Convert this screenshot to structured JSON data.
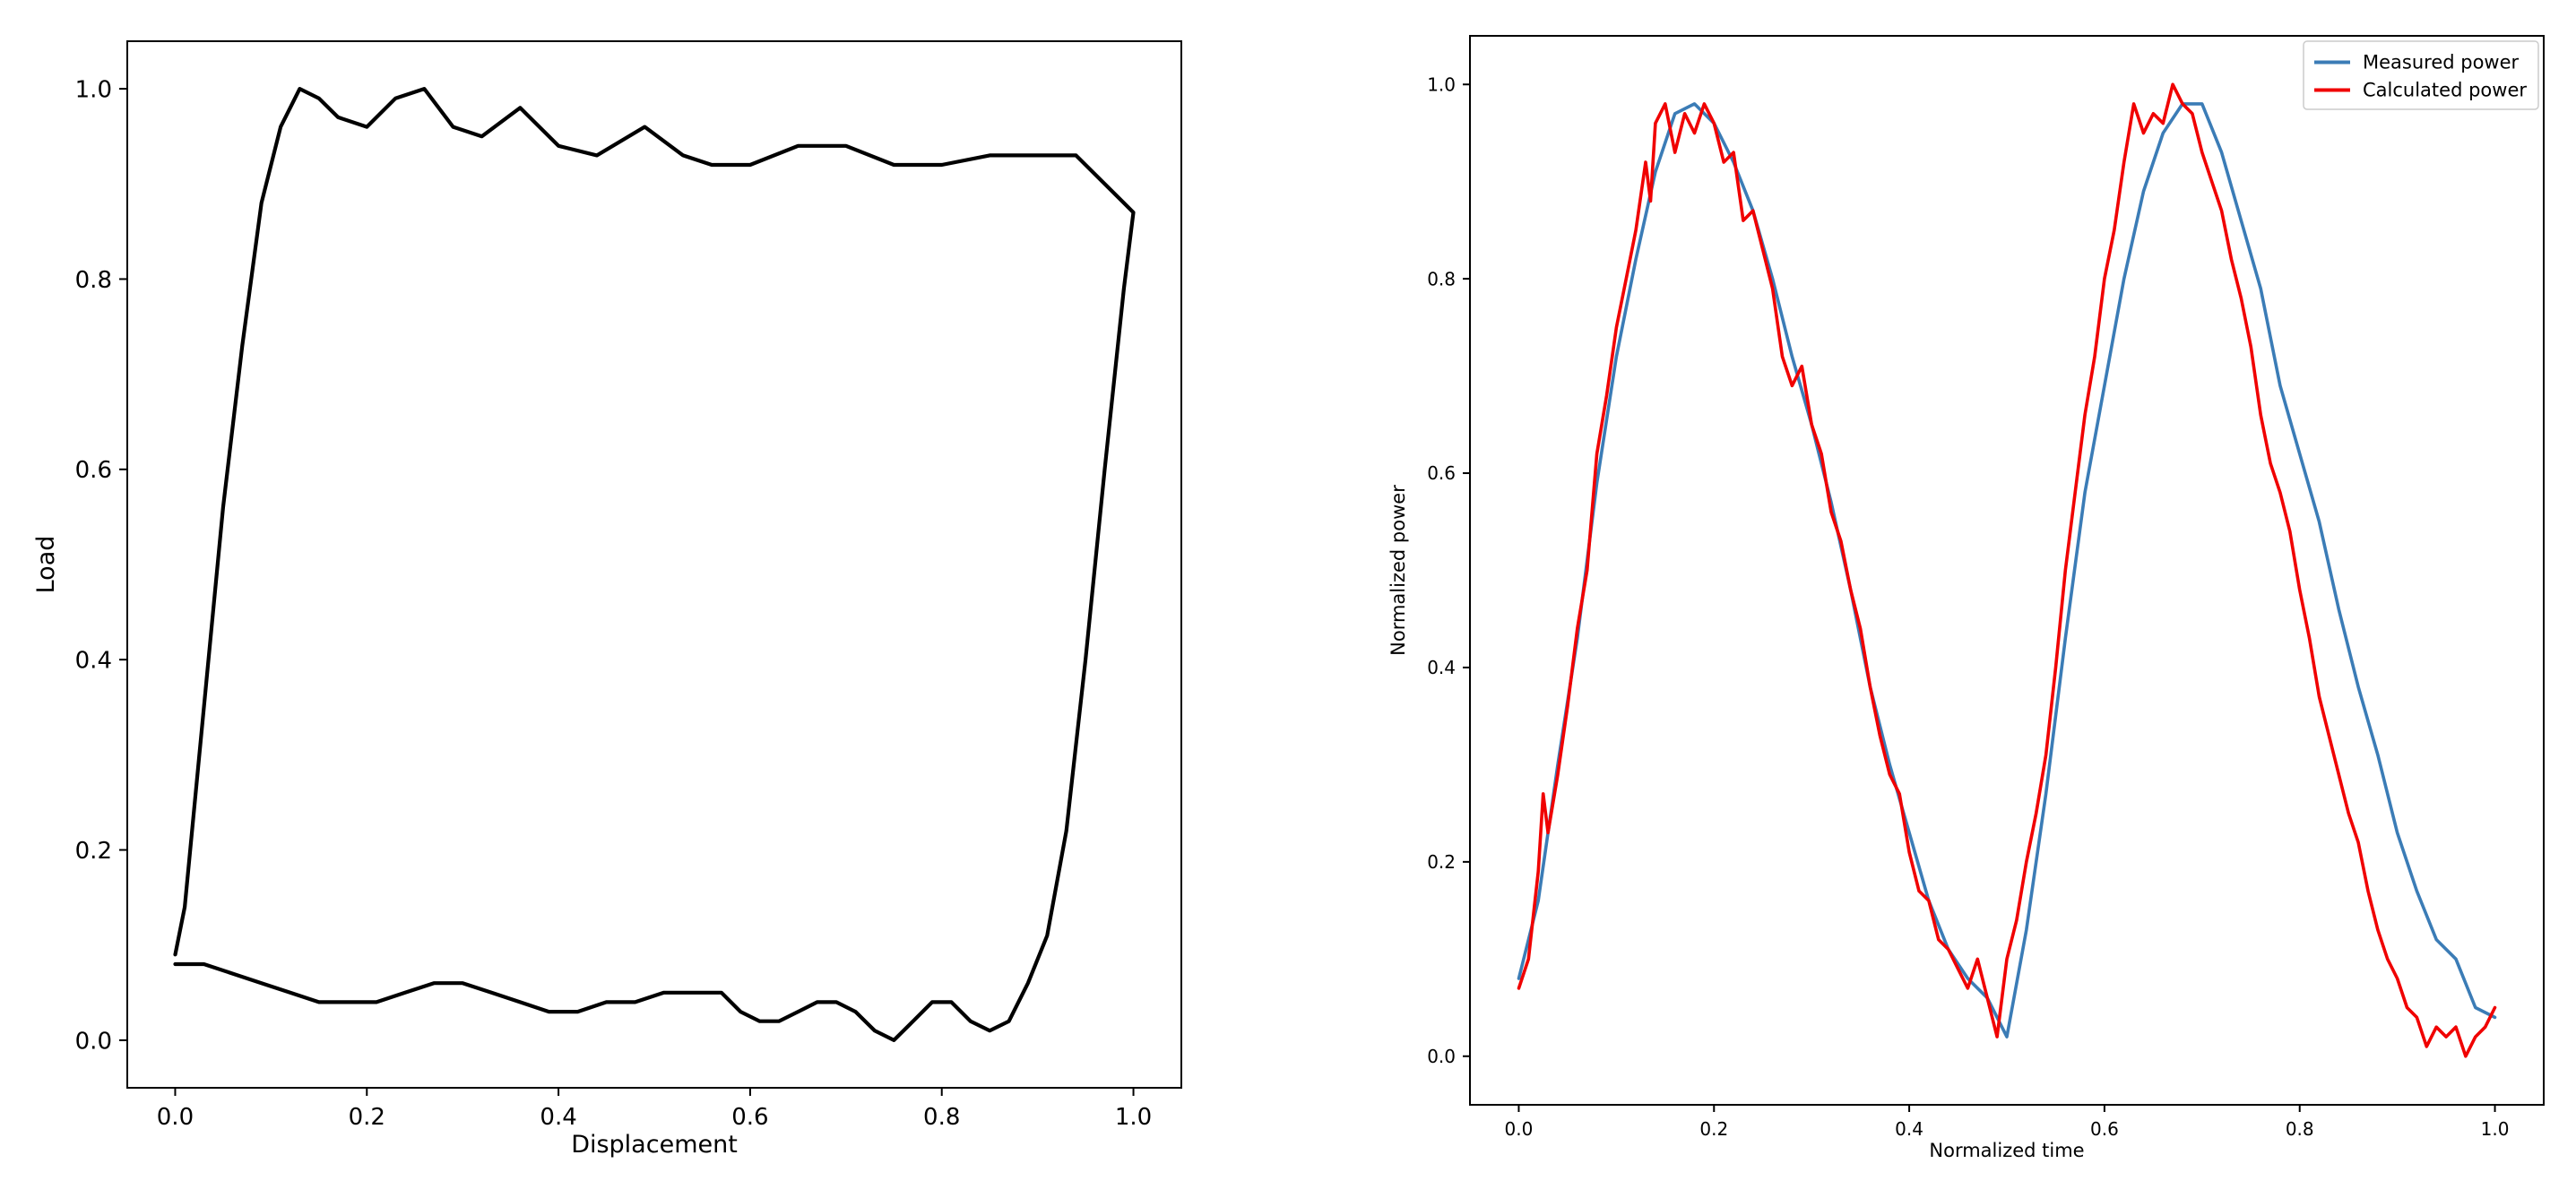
{
  "chart_data": [
    {
      "type": "line",
      "title": "",
      "xlabel": "Displacement",
      "ylabel": "Load",
      "xlim": [
        -0.05,
        1.05
      ],
      "ylim": [
        -0.05,
        1.05
      ],
      "xticks": [
        0.0,
        0.2,
        0.4,
        0.6,
        0.8,
        1.0
      ],
      "yticks": [
        0.0,
        0.2,
        0.4,
        0.6,
        0.8,
        1.0
      ],
      "xtick_labels": [
        "0.0",
        "0.2",
        "0.4",
        "0.6",
        "0.8",
        "1.0"
      ],
      "ytick_labels": [
        "0.0",
        "0.2",
        "0.4",
        "0.6",
        "0.8",
        "1.0"
      ],
      "grid": false,
      "series": [
        {
          "color": "#000000",
          "x": [
            0.0,
            0.01,
            0.03,
            0.05,
            0.07,
            0.09,
            0.11,
            0.13,
            0.15,
            0.17,
            0.2,
            0.23,
            0.26,
            0.29,
            0.32,
            0.36,
            0.4,
            0.44,
            0.49,
            0.53,
            0.56,
            0.6,
            0.65,
            0.7,
            0.75,
            0.8,
            0.85,
            0.9,
            0.94,
            0.97,
            0.99,
            1.0,
            0.99,
            0.97,
            0.95,
            0.93,
            0.91,
            0.89,
            0.87,
            0.85,
            0.83,
            0.81,
            0.79,
            0.77,
            0.75,
            0.73,
            0.71,
            0.69,
            0.67,
            0.65,
            0.63,
            0.61,
            0.59,
            0.57,
            0.54,
            0.51,
            0.48,
            0.45,
            0.42,
            0.39,
            0.36,
            0.33,
            0.3,
            0.27,
            0.24,
            0.21,
            0.18,
            0.15,
            0.12,
            0.09,
            0.06,
            0.03,
            0.0
          ],
          "y": [
            0.09,
            0.14,
            0.35,
            0.56,
            0.73,
            0.88,
            0.96,
            1.0,
            0.99,
            0.97,
            0.96,
            0.99,
            1.0,
            0.96,
            0.95,
            0.98,
            0.94,
            0.93,
            0.96,
            0.93,
            0.92,
            0.92,
            0.94,
            0.94,
            0.92,
            0.92,
            0.93,
            0.93,
            0.93,
            0.9,
            0.88,
            0.87,
            0.79,
            0.6,
            0.4,
            0.22,
            0.11,
            0.06,
            0.02,
            0.01,
            0.02,
            0.04,
            0.04,
            0.02,
            0.0,
            0.01,
            0.03,
            0.04,
            0.04,
            0.03,
            0.02,
            0.02,
            0.03,
            0.05,
            0.05,
            0.05,
            0.04,
            0.04,
            0.03,
            0.03,
            0.04,
            0.05,
            0.06,
            0.06,
            0.05,
            0.04,
            0.04,
            0.04,
            0.05,
            0.06,
            0.07,
            0.08,
            0.08
          ]
        }
      ]
    },
    {
      "type": "line",
      "title": "",
      "xlabel": "Normalized time",
      "ylabel": "Normalized power",
      "xlim": [
        -0.05,
        1.05
      ],
      "ylim": [
        -0.05,
        1.05
      ],
      "xticks": [
        0.0,
        0.2,
        0.4,
        0.6,
        0.8,
        1.0
      ],
      "yticks": [
        0.0,
        0.2,
        0.4,
        0.6,
        0.8,
        1.0
      ],
      "xtick_labels": [
        "0.0",
        "0.2",
        "0.4",
        "0.6",
        "0.8",
        "1.0"
      ],
      "ytick_labels": [
        "0.0",
        "0.2",
        "0.4",
        "0.6",
        "0.8",
        "1.0"
      ],
      "grid": false,
      "legend": "top-right",
      "series": [
        {
          "name": "Measured power",
          "color": "#3b7cb6",
          "x": [
            0.0,
            0.02,
            0.04,
            0.06,
            0.08,
            0.1,
            0.12,
            0.14,
            0.16,
            0.18,
            0.2,
            0.22,
            0.24,
            0.26,
            0.28,
            0.3,
            0.32,
            0.34,
            0.36,
            0.38,
            0.4,
            0.42,
            0.44,
            0.46,
            0.48,
            0.5,
            0.52,
            0.54,
            0.56,
            0.58,
            0.6,
            0.62,
            0.64,
            0.66,
            0.68,
            0.7,
            0.72,
            0.74,
            0.76,
            0.78,
            0.8,
            0.82,
            0.84,
            0.86,
            0.88,
            0.9,
            0.92,
            0.94,
            0.96,
            0.98,
            1.0
          ],
          "y": [
            0.08,
            0.16,
            0.3,
            0.43,
            0.59,
            0.72,
            0.82,
            0.91,
            0.97,
            0.98,
            0.96,
            0.92,
            0.87,
            0.8,
            0.72,
            0.65,
            0.57,
            0.48,
            0.38,
            0.3,
            0.23,
            0.16,
            0.11,
            0.08,
            0.06,
            0.02,
            0.13,
            0.27,
            0.43,
            0.58,
            0.69,
            0.8,
            0.89,
            0.95,
            0.98,
            0.98,
            0.93,
            0.86,
            0.79,
            0.69,
            0.62,
            0.55,
            0.46,
            0.38,
            0.31,
            0.23,
            0.17,
            0.12,
            0.1,
            0.05,
            0.04
          ]
        },
        {
          "name": "Calculated power",
          "color": "#f00000",
          "x": [
            0.0,
            0.01,
            0.02,
            0.025,
            0.03,
            0.04,
            0.05,
            0.06,
            0.07,
            0.08,
            0.09,
            0.1,
            0.11,
            0.12,
            0.13,
            0.135,
            0.14,
            0.15,
            0.16,
            0.17,
            0.18,
            0.19,
            0.2,
            0.21,
            0.22,
            0.23,
            0.24,
            0.25,
            0.26,
            0.27,
            0.28,
            0.29,
            0.3,
            0.31,
            0.32,
            0.33,
            0.34,
            0.35,
            0.36,
            0.37,
            0.38,
            0.39,
            0.4,
            0.41,
            0.42,
            0.43,
            0.44,
            0.45,
            0.46,
            0.47,
            0.48,
            0.49,
            0.5,
            0.51,
            0.52,
            0.53,
            0.54,
            0.55,
            0.56,
            0.57,
            0.58,
            0.59,
            0.6,
            0.61,
            0.62,
            0.63,
            0.64,
            0.65,
            0.66,
            0.67,
            0.68,
            0.69,
            0.7,
            0.71,
            0.72,
            0.73,
            0.74,
            0.75,
            0.76,
            0.77,
            0.78,
            0.79,
            0.8,
            0.81,
            0.82,
            0.83,
            0.84,
            0.85,
            0.86,
            0.87,
            0.88,
            0.89,
            0.9,
            0.91,
            0.92,
            0.93,
            0.94,
            0.95,
            0.96,
            0.97,
            0.98,
            0.99,
            1.0
          ],
          "y": [
            0.07,
            0.1,
            0.19,
            0.27,
            0.23,
            0.29,
            0.36,
            0.44,
            0.5,
            0.62,
            0.68,
            0.75,
            0.8,
            0.85,
            0.92,
            0.88,
            0.96,
            0.98,
            0.93,
            0.97,
            0.95,
            0.98,
            0.96,
            0.92,
            0.93,
            0.86,
            0.87,
            0.83,
            0.79,
            0.72,
            0.69,
            0.71,
            0.65,
            0.62,
            0.56,
            0.53,
            0.48,
            0.44,
            0.38,
            0.33,
            0.29,
            0.27,
            0.21,
            0.17,
            0.16,
            0.12,
            0.11,
            0.09,
            0.07,
            0.1,
            0.06,
            0.02,
            0.1,
            0.14,
            0.2,
            0.25,
            0.31,
            0.4,
            0.5,
            0.58,
            0.66,
            0.72,
            0.8,
            0.85,
            0.92,
            0.98,
            0.95,
            0.97,
            0.96,
            1.0,
            0.98,
            0.97,
            0.93,
            0.9,
            0.87,
            0.82,
            0.78,
            0.73,
            0.66,
            0.61,
            0.58,
            0.54,
            0.48,
            0.43,
            0.37,
            0.33,
            0.29,
            0.25,
            0.22,
            0.17,
            0.13,
            0.1,
            0.08,
            0.05,
            0.04,
            0.01,
            0.03,
            0.02,
            0.03,
            0.0,
            0.02,
            0.03,
            0.05
          ]
        }
      ]
    }
  ]
}
